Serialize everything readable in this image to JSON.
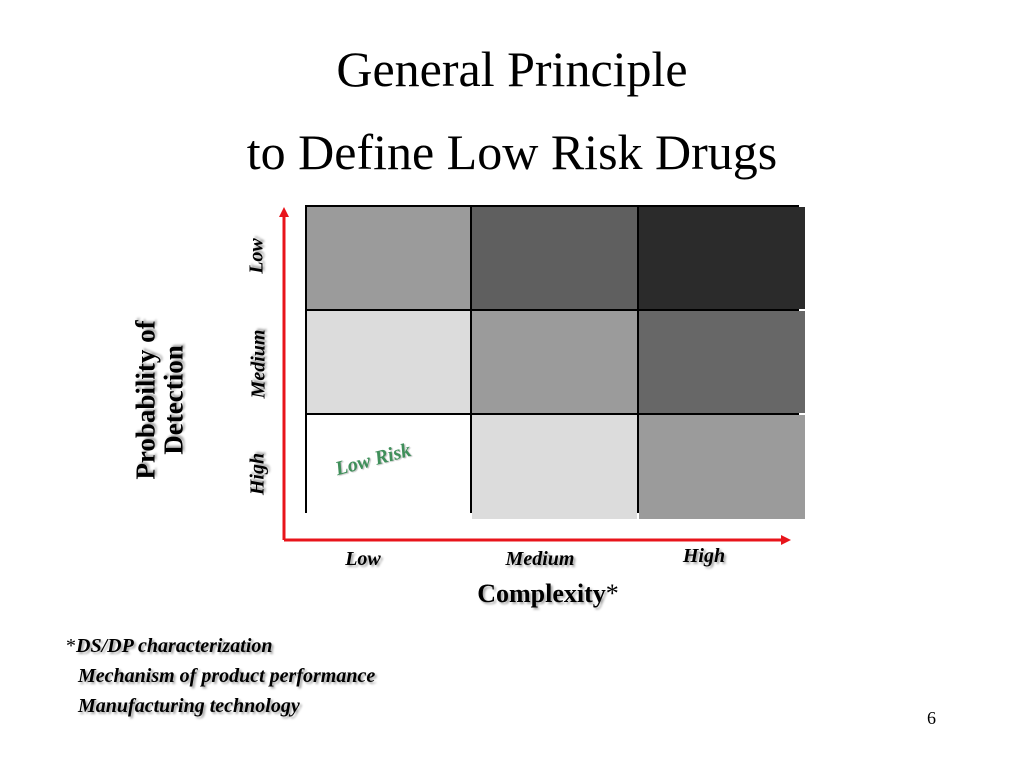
{
  "slide": {
    "title_line1": "General Principle",
    "title_line2": "to Define Low Risk Drugs",
    "page_number": "6"
  },
  "matrix": {
    "y_axis_title_line1": "Probability of",
    "y_axis_title_line2": "Detection",
    "y_ticks": [
      "Low",
      "Medium",
      "High"
    ],
    "x_ticks": [
      "Low",
      "Medium",
      "High"
    ],
    "x_axis_title": "Complexity",
    "x_axis_title_marker": "*",
    "cells": [
      [
        "#9b9b9b",
        "#5f5f5f",
        "#2b2b2b"
      ],
      [
        "#dcdcdc",
        "#9b9b9b",
        "#676767"
      ],
      [
        "#ffffff",
        "#dcdcdc",
        "#9b9b9b"
      ]
    ],
    "highlight_label": "Low Risk",
    "highlight_color": "#3f8f5a",
    "axis_color": "#e8141b"
  },
  "footnote": {
    "marker": "*",
    "items": [
      "DS/DP characterization",
      "Mechanism of product performance",
      "Manufacturing technology"
    ]
  }
}
